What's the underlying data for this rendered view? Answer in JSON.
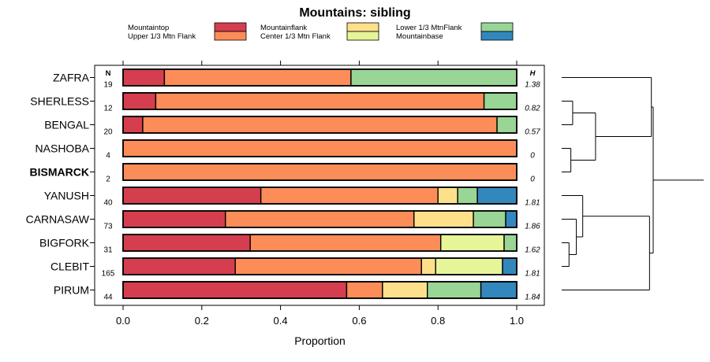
{
  "chart_data": {
    "type": "bar",
    "stacked": true,
    "orientation": "horizontal",
    "title": "Mountains: sibling",
    "xlabel": "Proportion",
    "ylabel": "",
    "xlim": [
      0,
      1
    ],
    "xticks": [
      "0.0",
      "0.2",
      "0.4",
      "0.6",
      "0.8",
      "1.0"
    ],
    "n_header": "N",
    "h_header": "H",
    "legend": [
      {
        "name": "Mountaintop",
        "color": "#d53e4f"
      },
      {
        "name": "Upper 1/3 Mtn Flank",
        "color": "#fc8d59"
      },
      {
        "name": "Mountainflank",
        "color": "#fee08b"
      },
      {
        "name": "Center 1/3 Mtn Flank",
        "color": "#e6f598"
      },
      {
        "name": "Lower 1/3 MtnFlank",
        "color": "#99d594"
      },
      {
        "name": "Mountainbase",
        "color": "#3288bd"
      }
    ],
    "categories": [
      "ZAFRA",
      "SHERLESS",
      "BENGAL",
      "NASHOBA",
      "BISMARCK",
      "YANUSH",
      "CARNASAW",
      "BIGFORK",
      "CLEBIT",
      "PIRUM"
    ],
    "bold_categories": [
      "BISMARCK"
    ],
    "n": [
      "19",
      "12",
      "20",
      "4",
      "2",
      "40",
      "73",
      "31",
      "165",
      "44"
    ],
    "h": [
      "1.38",
      "0.82",
      "0.57",
      "0",
      "0",
      "1.81",
      "1.86",
      "1.62",
      "1.81",
      "1.84"
    ],
    "series": [
      {
        "name": "Mountaintop",
        "values": [
          0.105,
          0.083,
          0.05,
          0,
          0,
          0.35,
          0.26,
          0.323,
          0.285,
          0.568
        ]
      },
      {
        "name": "Upper 1/3 Mtn Flank",
        "values": [
          0.474,
          0.834,
          0.9,
          1.0,
          1.0,
          0.45,
          0.479,
          0.484,
          0.473,
          0.091
        ]
      },
      {
        "name": "Mountainflank",
        "values": [
          0,
          0,
          0,
          0,
          0,
          0.05,
          0.151,
          0,
          0.036,
          0.114
        ]
      },
      {
        "name": "Center 1/3 Mtn Flank",
        "values": [
          0,
          0,
          0,
          0,
          0,
          0,
          0,
          0.161,
          0.17,
          0
        ]
      },
      {
        "name": "Lower 1/3 MtnFlank",
        "values": [
          0.421,
          0.083,
          0.05,
          0,
          0,
          0.05,
          0.082,
          0.032,
          0,
          0.136
        ]
      },
      {
        "name": "Mountainbase",
        "values": [
          0,
          0,
          0,
          0,
          0,
          0.1,
          0.028,
          0,
          0.036,
          0.091
        ]
      }
    ],
    "dendrogram": {
      "leaves": [
        "ZAFRA",
        "SHERLESS",
        "BENGAL",
        "NASHOBA",
        "BISMARCK",
        "YANUSH",
        "CARNASAW",
        "BIGFORK",
        "CLEBIT",
        "PIRUM"
      ],
      "merges": [
        {
          "a": "BIGFORK",
          "b": "CLEBIT",
          "height": 0.08
        },
        {
          "a": "NASHOBA",
          "b": "BISMARCK",
          "height": 0.1
        },
        {
          "a": "SHERLESS",
          "b": "BENGAL",
          "height": 0.12
        },
        {
          "a": "CARNASAW",
          "b": "m0",
          "height": 0.16
        },
        {
          "a": "YANUSH",
          "b": "m3",
          "height": 0.23
        },
        {
          "a": "m2",
          "b": "m1",
          "height": 0.37
        },
        {
          "a": "ZAFRA",
          "b": "m5",
          "height": 0.98
        },
        {
          "a": "m4",
          "b": "PIRUM",
          "height": 0.96
        },
        {
          "a": "m6",
          "b": "m7",
          "height": 1.0
        }
      ]
    }
  }
}
